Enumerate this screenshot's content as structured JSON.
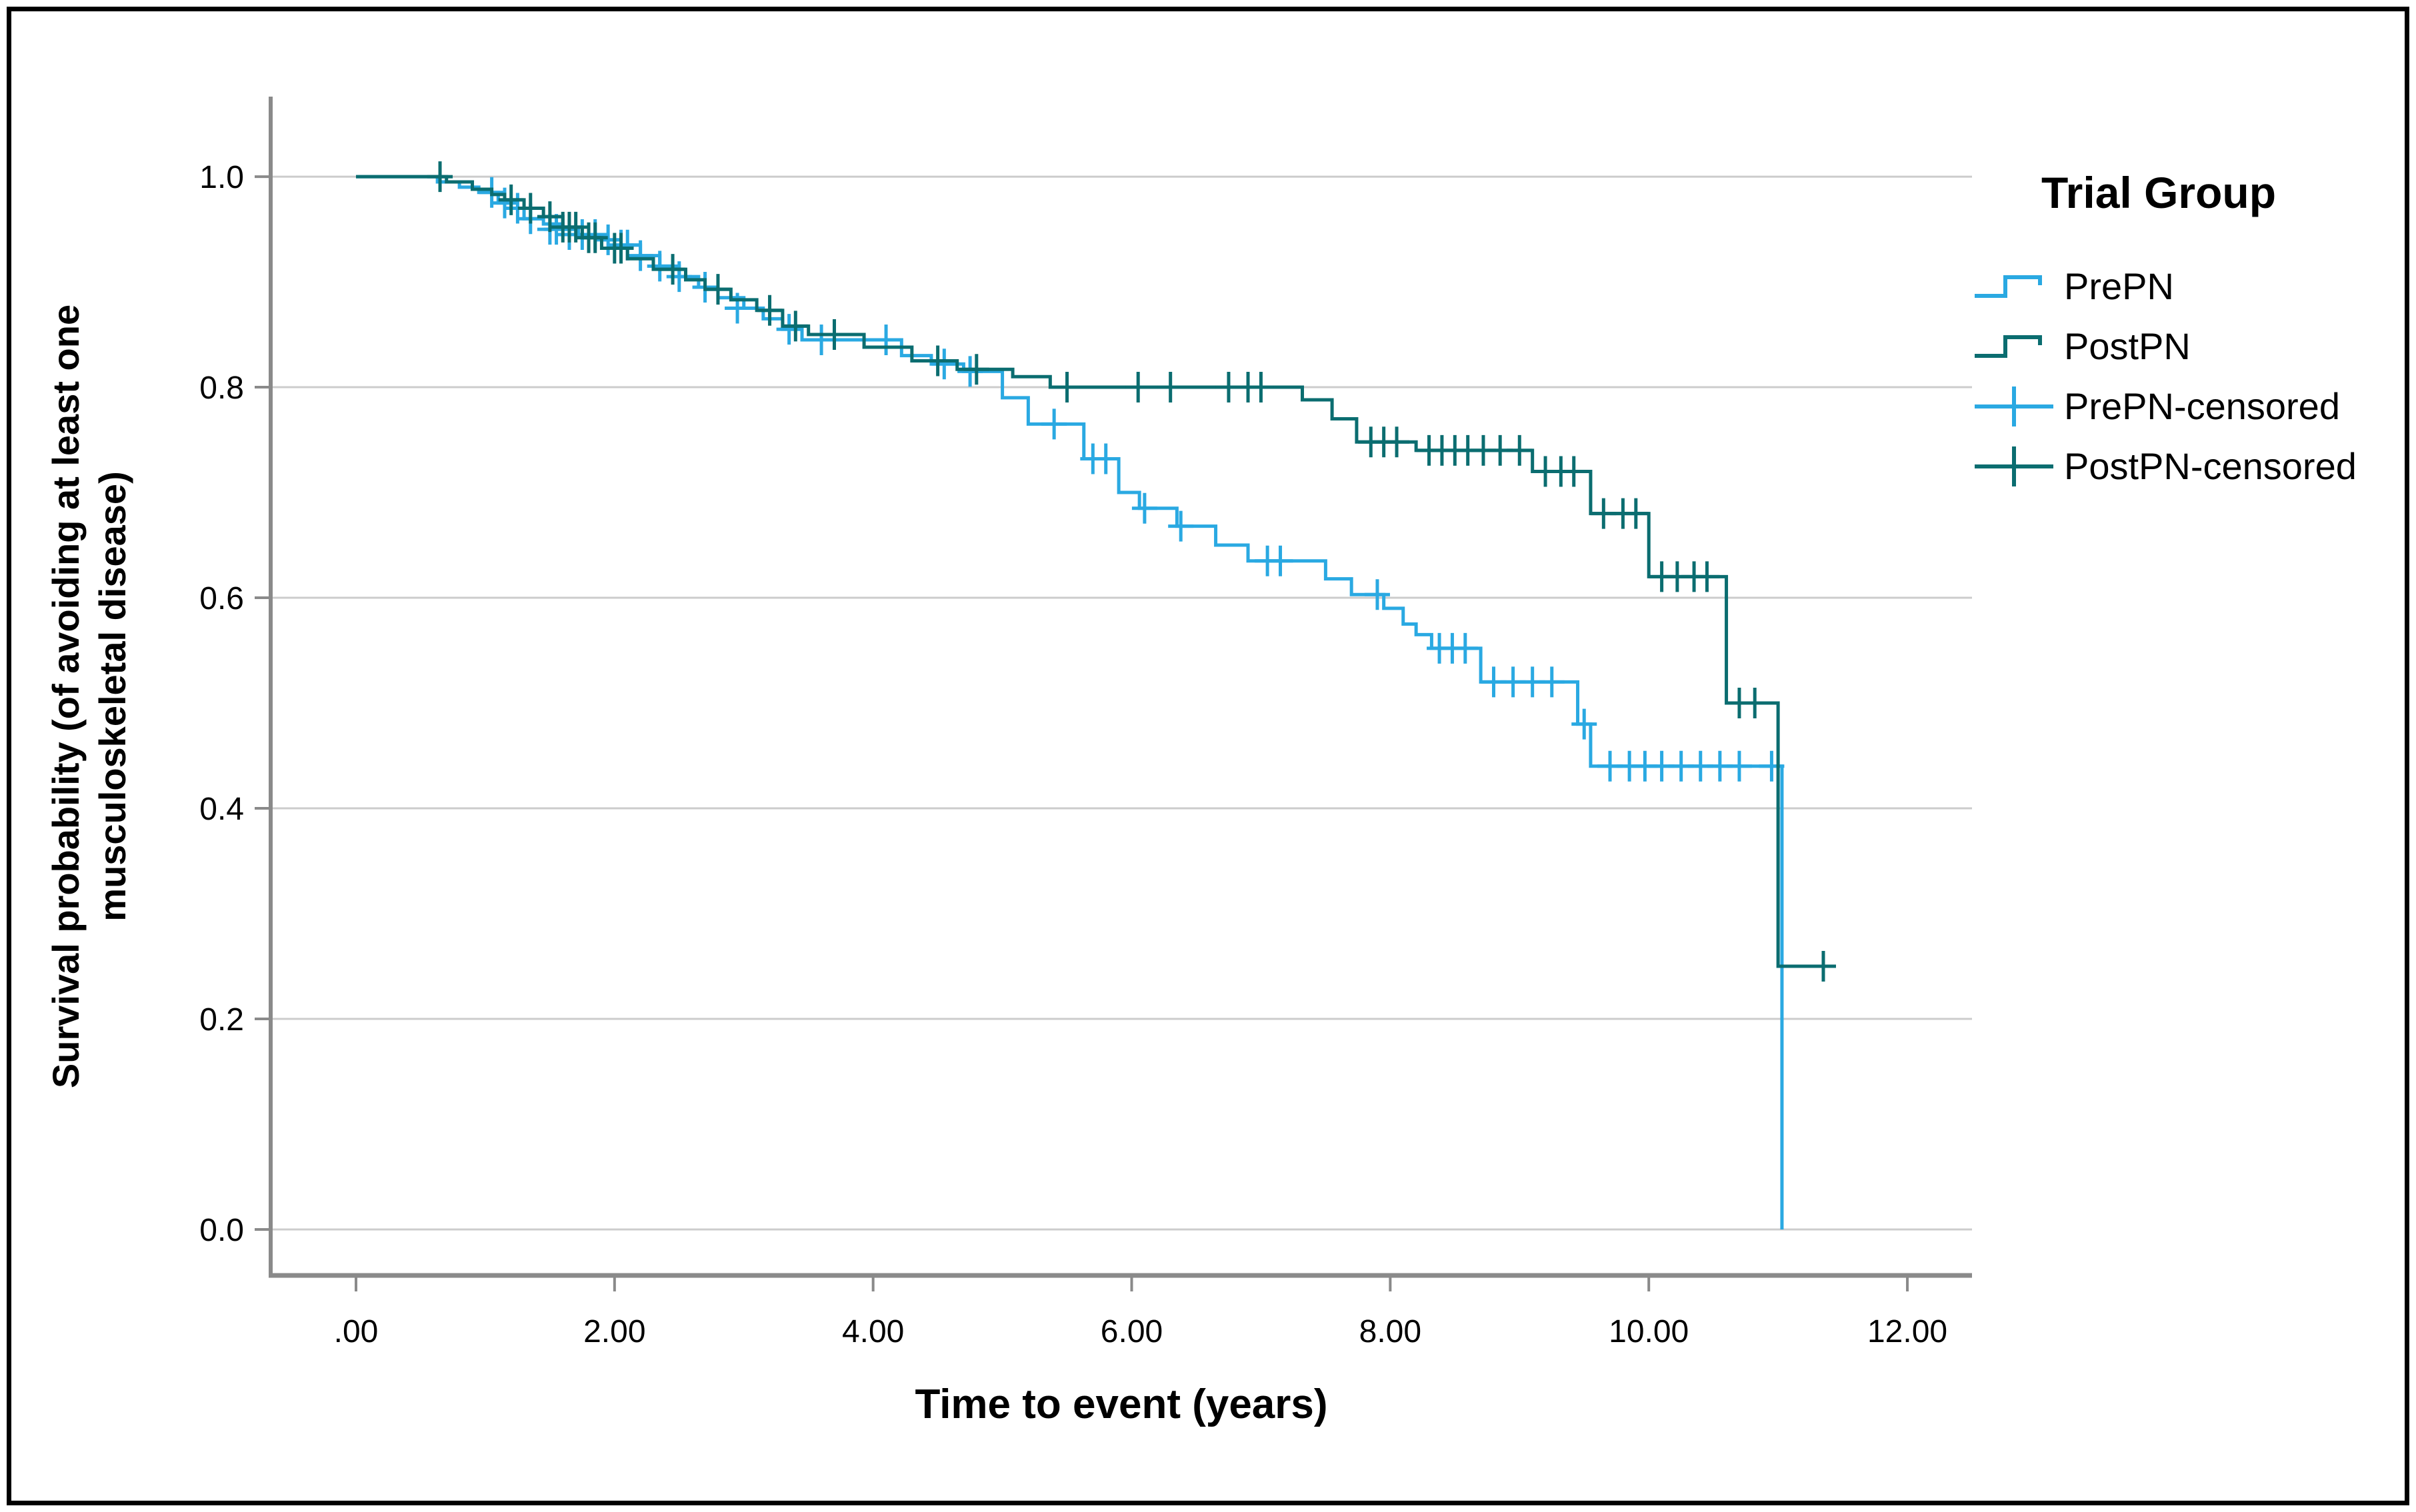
{
  "figure": {
    "background": "#FFFFFF",
    "border_color": "#000000"
  },
  "chart_data": {
    "type": "line",
    "subtype": "kaplan-meier-step",
    "title": "",
    "xlabel": "Time to event (years)",
    "ylabel_line1": "Survival probability (of avoiding at least one",
    "ylabel_line2": "musculoskeletal disease)",
    "x_ticks": [
      ".00",
      "2.00",
      "4.00",
      "6.00",
      "8.00",
      "10.00",
      "12.00"
    ],
    "x_tick_values": [
      0,
      2,
      4,
      6,
      8,
      10,
      12
    ],
    "y_ticks": [
      "1.0",
      "0.8",
      "0.6",
      "0.4",
      "0.2",
      "0.0"
    ],
    "y_tick_values": [
      1.0,
      0.8,
      0.6,
      0.4,
      0.2,
      0.0
    ],
    "xlim": [
      -0.66,
      12.5
    ],
    "ylim": [
      -0.0437,
      1.076
    ],
    "grid": true,
    "grid_color": "#CCCCCC",
    "axis_color": "#8A8A8A",
    "legend_position": "right-top",
    "legend": {
      "title": "Trial Group",
      "entries": [
        {
          "label": "PrePN",
          "color": "#2AA9E2",
          "glyph": "step"
        },
        {
          "label": "PostPN",
          "color": "#0B6D70",
          "glyph": "step"
        },
        {
          "label": "PrePN-censored",
          "color": "#2AA9E2",
          "glyph": "censor"
        },
        {
          "label": "PostPN-censored",
          "color": "#0B6D70",
          "glyph": "censor"
        }
      ]
    },
    "series": [
      {
        "name": "PrePN",
        "color": "#2AA9E2",
        "end_t": 11.03,
        "steps": [
          [
            0,
            1.0
          ],
          [
            0.63,
            0.995
          ],
          [
            0.8,
            0.99
          ],
          [
            0.95,
            0.985
          ],
          [
            1.1,
            0.975
          ],
          [
            1.2,
            0.97
          ],
          [
            1.3,
            0.96
          ],
          [
            1.45,
            0.955
          ],
          [
            1.6,
            0.95
          ],
          [
            1.72,
            0.945
          ],
          [
            1.9,
            0.94
          ],
          [
            2.05,
            0.935
          ],
          [
            2.2,
            0.925
          ],
          [
            2.35,
            0.915
          ],
          [
            2.5,
            0.905
          ],
          [
            2.65,
            0.895
          ],
          [
            2.8,
            0.885
          ],
          [
            3.0,
            0.875
          ],
          [
            3.15,
            0.865
          ],
          [
            3.3,
            0.855
          ],
          [
            3.45,
            0.845
          ],
          [
            4.22,
            0.83
          ],
          [
            4.45,
            0.822
          ],
          [
            4.7,
            0.815
          ],
          [
            5.0,
            0.79
          ],
          [
            5.2,
            0.765
          ],
          [
            5.63,
            0.732
          ],
          [
            5.9,
            0.7
          ],
          [
            6.06,
            0.685
          ],
          [
            6.35,
            0.668
          ],
          [
            6.65,
            0.65
          ],
          [
            6.9,
            0.635
          ],
          [
            7.5,
            0.618
          ],
          [
            7.7,
            0.603
          ],
          [
            7.95,
            0.59
          ],
          [
            8.1,
            0.575
          ],
          [
            8.2,
            0.565
          ],
          [
            8.32,
            0.552
          ],
          [
            8.7,
            0.52
          ],
          [
            9.45,
            0.48
          ],
          [
            9.55,
            0.44
          ],
          [
            11.03,
            0.0
          ]
        ],
        "censors": [
          [
            1.05,
            0.985
          ],
          [
            1.15,
            0.975
          ],
          [
            1.25,
            0.97
          ],
          [
            1.35,
            0.96
          ],
          [
            1.5,
            0.95
          ],
          [
            1.55,
            0.95
          ],
          [
            1.65,
            0.945
          ],
          [
            1.75,
            0.945
          ],
          [
            1.85,
            0.945
          ],
          [
            1.95,
            0.94
          ],
          [
            2.05,
            0.935
          ],
          [
            2.1,
            0.935
          ],
          [
            2.2,
            0.925
          ],
          [
            2.35,
            0.915
          ],
          [
            2.5,
            0.905
          ],
          [
            2.7,
            0.895
          ],
          [
            2.95,
            0.875
          ],
          [
            3.35,
            0.855
          ],
          [
            3.6,
            0.845
          ],
          [
            4.1,
            0.845
          ],
          [
            4.55,
            0.822
          ],
          [
            4.75,
            0.815
          ],
          [
            5.4,
            0.765
          ],
          [
            5.7,
            0.732
          ],
          [
            5.8,
            0.732
          ],
          [
            6.1,
            0.685
          ],
          [
            6.38,
            0.668
          ],
          [
            7.05,
            0.635
          ],
          [
            7.15,
            0.635
          ],
          [
            7.9,
            0.603
          ],
          [
            8.38,
            0.552
          ],
          [
            8.48,
            0.552
          ],
          [
            8.58,
            0.552
          ],
          [
            8.8,
            0.52
          ],
          [
            8.95,
            0.52
          ],
          [
            9.1,
            0.52
          ],
          [
            9.25,
            0.52
          ],
          [
            9.5,
            0.48
          ],
          [
            9.7,
            0.44
          ],
          [
            9.85,
            0.44
          ],
          [
            9.97,
            0.44
          ],
          [
            10.1,
            0.44
          ],
          [
            10.25,
            0.44
          ],
          [
            10.4,
            0.44
          ],
          [
            10.55,
            0.44
          ],
          [
            10.7,
            0.44
          ],
          [
            10.95,
            0.44
          ]
        ]
      },
      {
        "name": "PostPN",
        "color": "#0B6D70",
        "end_t": 11.42,
        "steps": [
          [
            0,
            1.0
          ],
          [
            0.7,
            0.995
          ],
          [
            0.9,
            0.988
          ],
          [
            1.05,
            0.983
          ],
          [
            1.15,
            0.978
          ],
          [
            1.3,
            0.97
          ],
          [
            1.45,
            0.962
          ],
          [
            1.6,
            0.952
          ],
          [
            1.75,
            0.942
          ],
          [
            1.9,
            0.932
          ],
          [
            2.1,
            0.922
          ],
          [
            2.3,
            0.912
          ],
          [
            2.55,
            0.902
          ],
          [
            2.7,
            0.893
          ],
          [
            2.9,
            0.883
          ],
          [
            3.1,
            0.873
          ],
          [
            3.3,
            0.858
          ],
          [
            3.5,
            0.85
          ],
          [
            3.93,
            0.838
          ],
          [
            4.3,
            0.825
          ],
          [
            4.65,
            0.817
          ],
          [
            5.08,
            0.81
          ],
          [
            5.37,
            0.8
          ],
          [
            7.32,
            0.788
          ],
          [
            7.55,
            0.77
          ],
          [
            7.74,
            0.748
          ],
          [
            8.2,
            0.74
          ],
          [
            9.1,
            0.72
          ],
          [
            9.55,
            0.68
          ],
          [
            10.0,
            0.62
          ],
          [
            10.6,
            0.5
          ],
          [
            11.0,
            0.25
          ]
        ],
        "censors": [
          [
            0.65,
            1.0
          ],
          [
            1.2,
            0.978
          ],
          [
            1.35,
            0.97
          ],
          [
            1.5,
            0.962
          ],
          [
            1.6,
            0.952
          ],
          [
            1.65,
            0.952
          ],
          [
            1.7,
            0.952
          ],
          [
            1.8,
            0.942
          ],
          [
            1.85,
            0.942
          ],
          [
            2.0,
            0.932
          ],
          [
            2.05,
            0.932
          ],
          [
            2.45,
            0.912
          ],
          [
            2.8,
            0.893
          ],
          [
            3.2,
            0.873
          ],
          [
            3.4,
            0.858
          ],
          [
            3.7,
            0.85
          ],
          [
            4.5,
            0.825
          ],
          [
            4.8,
            0.817
          ],
          [
            5.5,
            0.8
          ],
          [
            6.05,
            0.8
          ],
          [
            6.3,
            0.8
          ],
          [
            6.75,
            0.8
          ],
          [
            6.9,
            0.8
          ],
          [
            7.0,
            0.8
          ],
          [
            7.85,
            0.748
          ],
          [
            7.95,
            0.748
          ],
          [
            8.05,
            0.748
          ],
          [
            8.3,
            0.74
          ],
          [
            8.4,
            0.74
          ],
          [
            8.5,
            0.74
          ],
          [
            8.6,
            0.74
          ],
          [
            8.72,
            0.74
          ],
          [
            8.85,
            0.74
          ],
          [
            9.0,
            0.74
          ],
          [
            9.2,
            0.72
          ],
          [
            9.32,
            0.72
          ],
          [
            9.42,
            0.72
          ],
          [
            9.65,
            0.68
          ],
          [
            9.8,
            0.68
          ],
          [
            9.9,
            0.68
          ],
          [
            10.1,
            0.62
          ],
          [
            10.22,
            0.62
          ],
          [
            10.35,
            0.62
          ],
          [
            10.45,
            0.62
          ],
          [
            10.7,
            0.5
          ],
          [
            10.82,
            0.5
          ],
          [
            11.35,
            0.25
          ]
        ]
      }
    ]
  }
}
